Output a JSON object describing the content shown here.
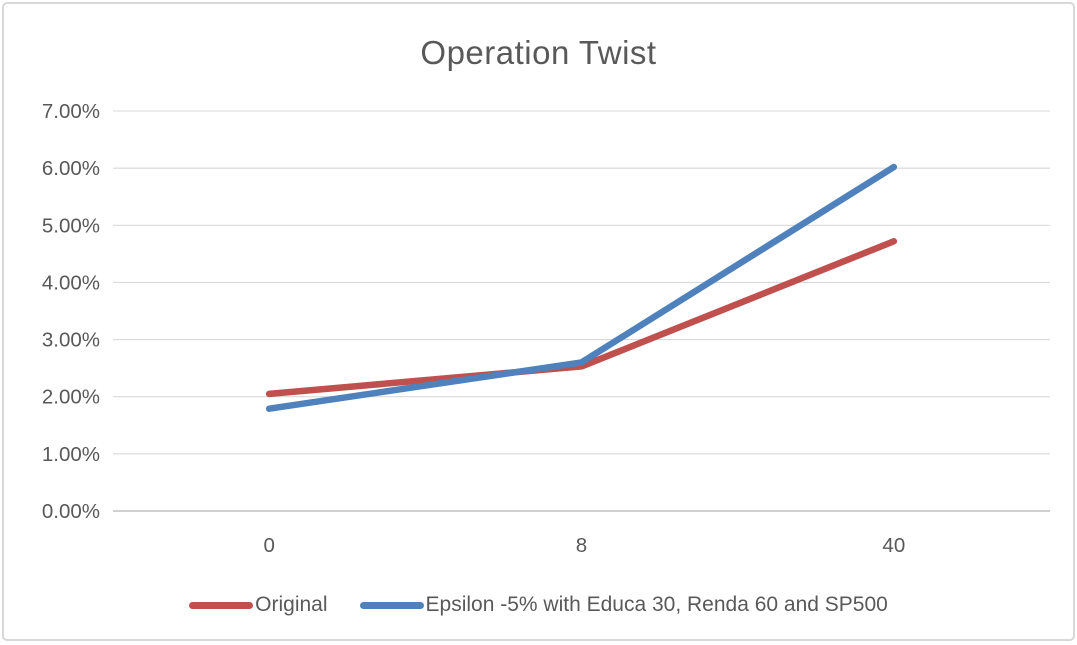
{
  "window": {
    "background": "#ffffff",
    "border_color": "#d8d8d8"
  },
  "chart_data": {
    "type": "line",
    "title": "Operation Twist",
    "categories": [
      "0",
      "8",
      "40"
    ],
    "series": [
      {
        "name": "Original",
        "color": "#c0504d",
        "values": [
          2.05,
          2.53,
          4.72
        ]
      },
      {
        "name": "Epsilon -5% with Educa 30, Renda 60 and SP500",
        "color": "#4f81bd",
        "values": [
          1.79,
          2.6,
          6.02
        ]
      }
    ],
    "xlabel": "",
    "ylabel": "",
    "ylim": [
      0,
      7
    ],
    "y_tick_values": [
      0,
      1,
      2,
      3,
      4,
      5,
      6,
      7
    ],
    "y_tick_labels": [
      "0.00%",
      "1.00%",
      "2.00%",
      "3.00%",
      "4.00%",
      "5.00%",
      "6.00%",
      "7.00%"
    ],
    "grid": true,
    "legend_position": "bottom",
    "text_color": "#595959",
    "gridline_color": "#d9d9d9",
    "axis_line_color": "#c0c0c0"
  }
}
